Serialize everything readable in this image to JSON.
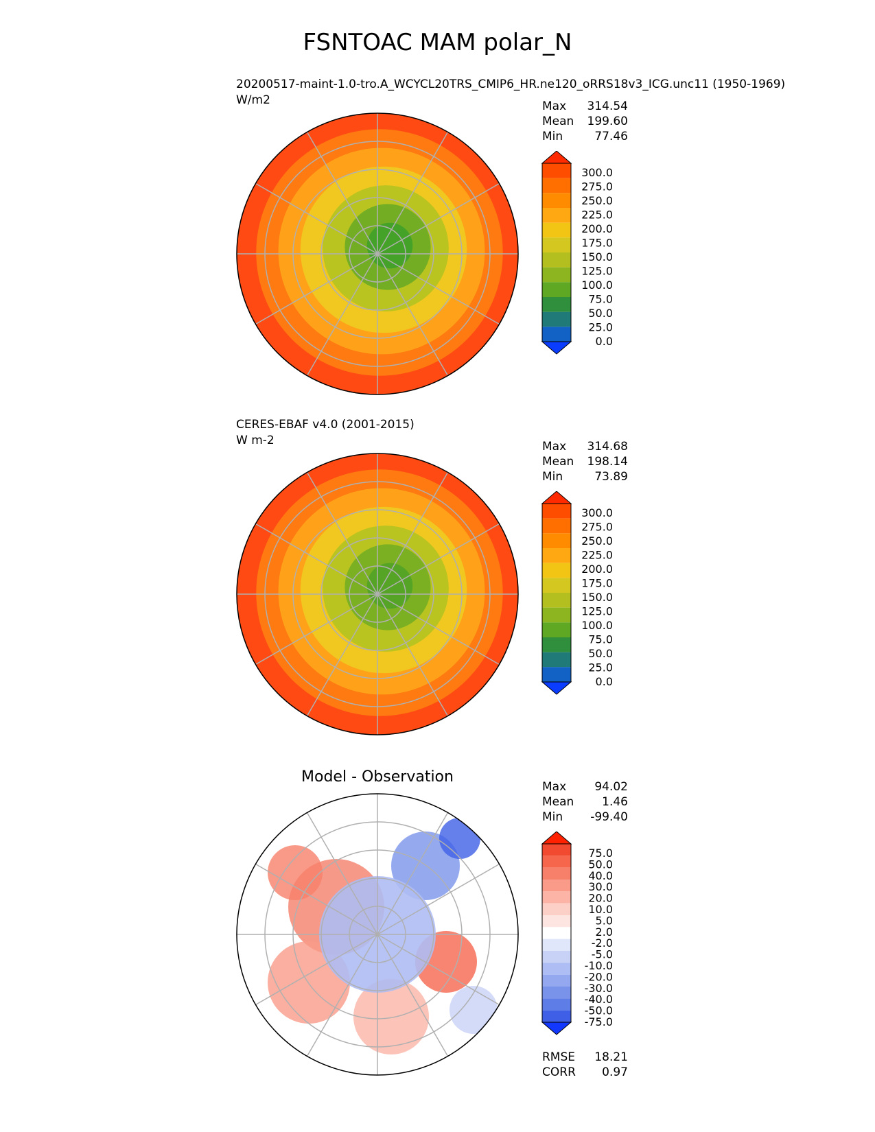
{
  "title": "FSNTOAC MAM polar_N",
  "panels": [
    {
      "id": "test",
      "label": "20200517-maint-1.0-tro.A_WCYCL20TRS_CMIP6_HR.ne120_oRRS18v3_ICG.unc11 (1950-1969)",
      "units": "W/m2",
      "stats": {
        "max_label": "Max",
        "max": "314.54",
        "mean_label": "Mean",
        "mean": "199.60",
        "min_label": "Min",
        "min": "77.46"
      },
      "colorbar": {
        "labels": [
          "300.0",
          "275.0",
          "250.0",
          "225.0",
          "200.0",
          "175.0",
          "150.0",
          "125.0",
          "100.0",
          "75.0",
          "50.0",
          "25.0",
          "0.0"
        ],
        "colors": [
          "#ff2a00",
          "#ff4d00",
          "#ff6f00",
          "#ff8c00",
          "#ffa812",
          "#f2c414",
          "#d4c820",
          "#b3bf1e",
          "#8cb520",
          "#5fa823",
          "#2f8f3d",
          "#1f7a78",
          "#1261c4",
          "#0a3dff"
        ]
      },
      "zones": [
        "#ff4a14",
        "#ff7a10",
        "#ffa21a",
        "#f0c820",
        "#b9c420",
        "#72ad24",
        "#45a228"
      ]
    },
    {
      "id": "ref",
      "label": "CERES-EBAF v4.0 (2001-2015)",
      "units": "W m-2",
      "stats": {
        "max_label": "Max",
        "max": "314.68",
        "mean_label": "Mean",
        "mean": "198.14",
        "min_label": "Min",
        "min": "73.89"
      },
      "colorbar": {
        "labels": [
          "300.0",
          "275.0",
          "250.0",
          "225.0",
          "200.0",
          "175.0",
          "150.0",
          "125.0",
          "100.0",
          "75.0",
          "50.0",
          "25.0",
          "0.0"
        ],
        "colors": [
          "#ff2a00",
          "#ff4d00",
          "#ff6f00",
          "#ff8c00",
          "#ffa812",
          "#f2c414",
          "#d4c820",
          "#b3bf1e",
          "#8cb520",
          "#5fa823",
          "#2f8f3d",
          "#1f7a78",
          "#1261c4",
          "#0a3dff"
        ]
      },
      "zones": [
        "#ff4a14",
        "#ff7a10",
        "#ffa21a",
        "#f0c820",
        "#b9c420",
        "#7ab022",
        "#55a426"
      ]
    },
    {
      "id": "diff",
      "label": "Model - Observation",
      "units": "",
      "stats": {
        "max_label": "Max",
        "max": "94.02",
        "mean_label": "Mean",
        "mean": "1.46",
        "min_label": "Min",
        "min": "-99.40"
      },
      "colorbar": {
        "labels": [
          "75.0",
          "50.0",
          "40.0",
          "30.0",
          "20.0",
          "10.0",
          "5.0",
          "2.0",
          "-2.0",
          "-5.0",
          "-10.0",
          "-20.0",
          "-30.0",
          "-40.0",
          "-50.0",
          "-75.0"
        ],
        "colors": [
          "#ff2200",
          "#f24a30",
          "#f5664d",
          "#f7806a",
          "#f99b88",
          "#fbb4a6",
          "#fcd0c6",
          "#fde6e1",
          "#ffffff",
          "#e1e7fb",
          "#c8d2f7",
          "#aebdf3",
          "#94a8ef",
          "#7a93ea",
          "#5f7de6",
          "#3f60e6",
          "#1238ff"
        ]
      },
      "zones": [],
      "metrics": {
        "rmse_label": "RMSE",
        "rmse": "18.21",
        "corr_label": "CORR",
        "corr": "0.97"
      }
    }
  ]
}
